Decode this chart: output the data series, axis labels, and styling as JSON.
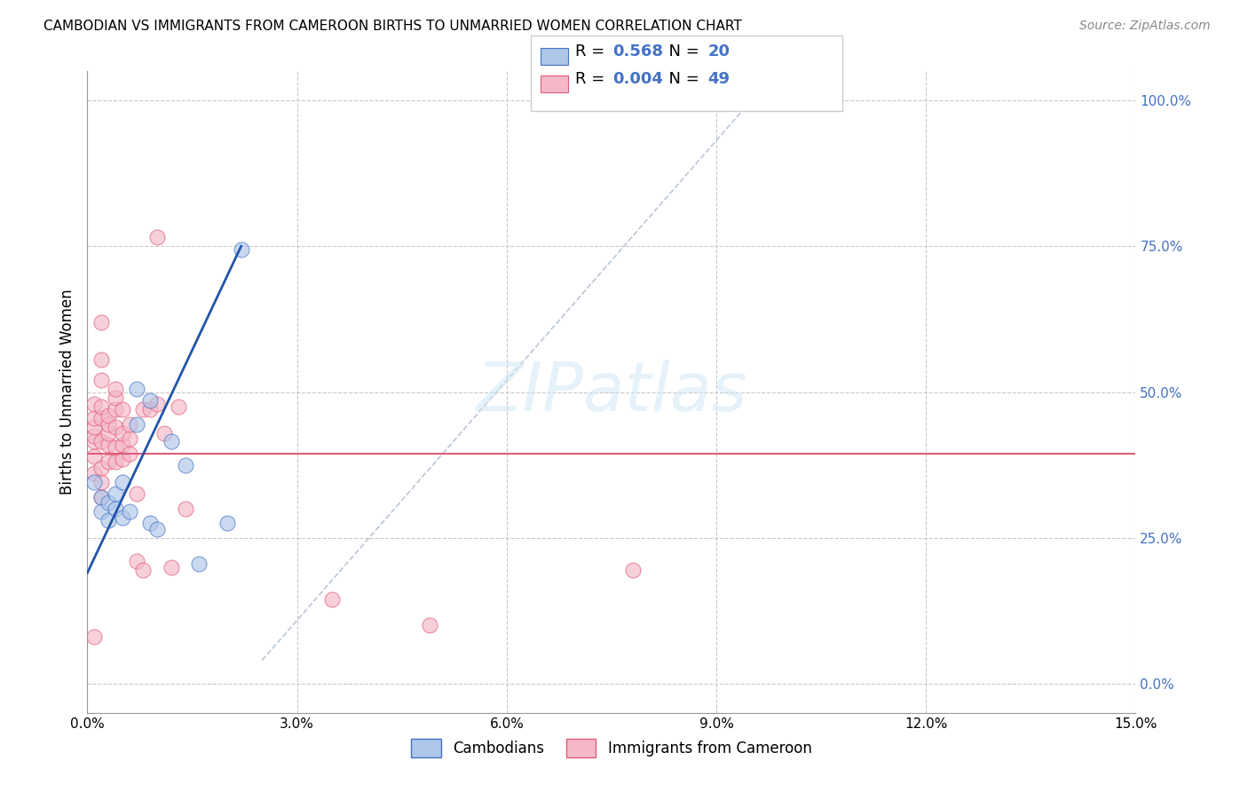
{
  "title": "CAMBODIAN VS IMMIGRANTS FROM CAMEROON BIRTHS TO UNMARRIED WOMEN CORRELATION CHART",
  "source": "Source: ZipAtlas.com",
  "ylabel": "Births to Unmarried Women",
  "xlim": [
    0.0,
    0.15
  ],
  "ylim": [
    -0.05,
    1.05
  ],
  "xticks": [
    0.0,
    0.03,
    0.06,
    0.09,
    0.12,
    0.15
  ],
  "xticklabels": [
    "0.0%",
    "3.0%",
    "6.0%",
    "9.0%",
    "12.0%",
    "15.0%"
  ],
  "yticks_right": [
    0.0,
    0.25,
    0.5,
    0.75,
    1.0
  ],
  "yticklabels_right": [
    "0.0%",
    "25.0%",
    "50.0%",
    "75.0%",
    "100.0%"
  ],
  "cambodian_fill": "#aec6e8",
  "cambodian_edge": "#4472c4",
  "cameroon_fill": "#f4b8c8",
  "cameroon_edge": "#e05c7a",
  "trend_cambodian_color": "#2255aa",
  "trend_cameroon_color": "#e05c7a",
  "ref_line_color": "#aab8cc",
  "watermark_text": "ZIPatlas",
  "background_color": "#ffffff",
  "grid_color": "#c8c8c8",
  "cambodian_scatter": [
    [
      0.001,
      0.345
    ],
    [
      0.002,
      0.32
    ],
    [
      0.002,
      0.295
    ],
    [
      0.003,
      0.31
    ],
    [
      0.003,
      0.28
    ],
    [
      0.004,
      0.325
    ],
    [
      0.004,
      0.3
    ],
    [
      0.005,
      0.345
    ],
    [
      0.005,
      0.285
    ],
    [
      0.006,
      0.295
    ],
    [
      0.007,
      0.505
    ],
    [
      0.007,
      0.445
    ],
    [
      0.009,
      0.485
    ],
    [
      0.009,
      0.275
    ],
    [
      0.01,
      0.265
    ],
    [
      0.012,
      0.415
    ],
    [
      0.014,
      0.375
    ],
    [
      0.016,
      0.205
    ],
    [
      0.02,
      0.275
    ],
    [
      0.022,
      0.745
    ]
  ],
  "cameroon_scatter": [
    [
      0.001,
      0.36
    ],
    [
      0.001,
      0.39
    ],
    [
      0.001,
      0.415
    ],
    [
      0.001,
      0.425
    ],
    [
      0.001,
      0.44
    ],
    [
      0.001,
      0.455
    ],
    [
      0.001,
      0.48
    ],
    [
      0.002,
      0.32
    ],
    [
      0.002,
      0.345
    ],
    [
      0.002,
      0.37
    ],
    [
      0.002,
      0.415
    ],
    [
      0.002,
      0.455
    ],
    [
      0.002,
      0.475
    ],
    [
      0.002,
      0.52
    ],
    [
      0.002,
      0.555
    ],
    [
      0.002,
      0.62
    ],
    [
      0.003,
      0.38
    ],
    [
      0.003,
      0.41
    ],
    [
      0.003,
      0.43
    ],
    [
      0.003,
      0.445
    ],
    [
      0.003,
      0.46
    ],
    [
      0.004,
      0.38
    ],
    [
      0.004,
      0.405
    ],
    [
      0.004,
      0.44
    ],
    [
      0.004,
      0.47
    ],
    [
      0.004,
      0.49
    ],
    [
      0.004,
      0.505
    ],
    [
      0.005,
      0.385
    ],
    [
      0.005,
      0.41
    ],
    [
      0.005,
      0.43
    ],
    [
      0.005,
      0.47
    ],
    [
      0.006,
      0.395
    ],
    [
      0.006,
      0.42
    ],
    [
      0.006,
      0.445
    ],
    [
      0.007,
      0.21
    ],
    [
      0.007,
      0.325
    ],
    [
      0.008,
      0.195
    ],
    [
      0.008,
      0.47
    ],
    [
      0.009,
      0.47
    ],
    [
      0.01,
      0.48
    ],
    [
      0.01,
      0.765
    ],
    [
      0.011,
      0.43
    ],
    [
      0.012,
      0.2
    ],
    [
      0.013,
      0.475
    ],
    [
      0.014,
      0.3
    ],
    [
      0.035,
      0.145
    ],
    [
      0.049,
      0.1
    ],
    [
      0.078,
      0.195
    ],
    [
      0.001,
      0.08
    ]
  ],
  "trend_cambodian_x0": 0.0,
  "trend_cambodian_y0": 0.19,
  "trend_cambodian_x1": 0.022,
  "trend_cambodian_y1": 0.75,
  "trend_cameroon_y": 0.395,
  "ref_line_x0": 0.025,
  "ref_line_y0": 0.04,
  "ref_line_x1": 0.095,
  "ref_line_y1": 1.0,
  "r_cambodian": "0.568",
  "n_cambodian": "20",
  "r_cameroon": "0.004",
  "n_cameroon": "49",
  "legend_label1_prefix": "R = ",
  "legend_label1_value": "0.568",
  "legend_label1_mid": "   N = ",
  "legend_label1_n": "20",
  "legend_label2_prefix": "R = ",
  "legend_label2_value": "0.004",
  "legend_label2_mid": "   N = ",
  "legend_label2_n": "49"
}
